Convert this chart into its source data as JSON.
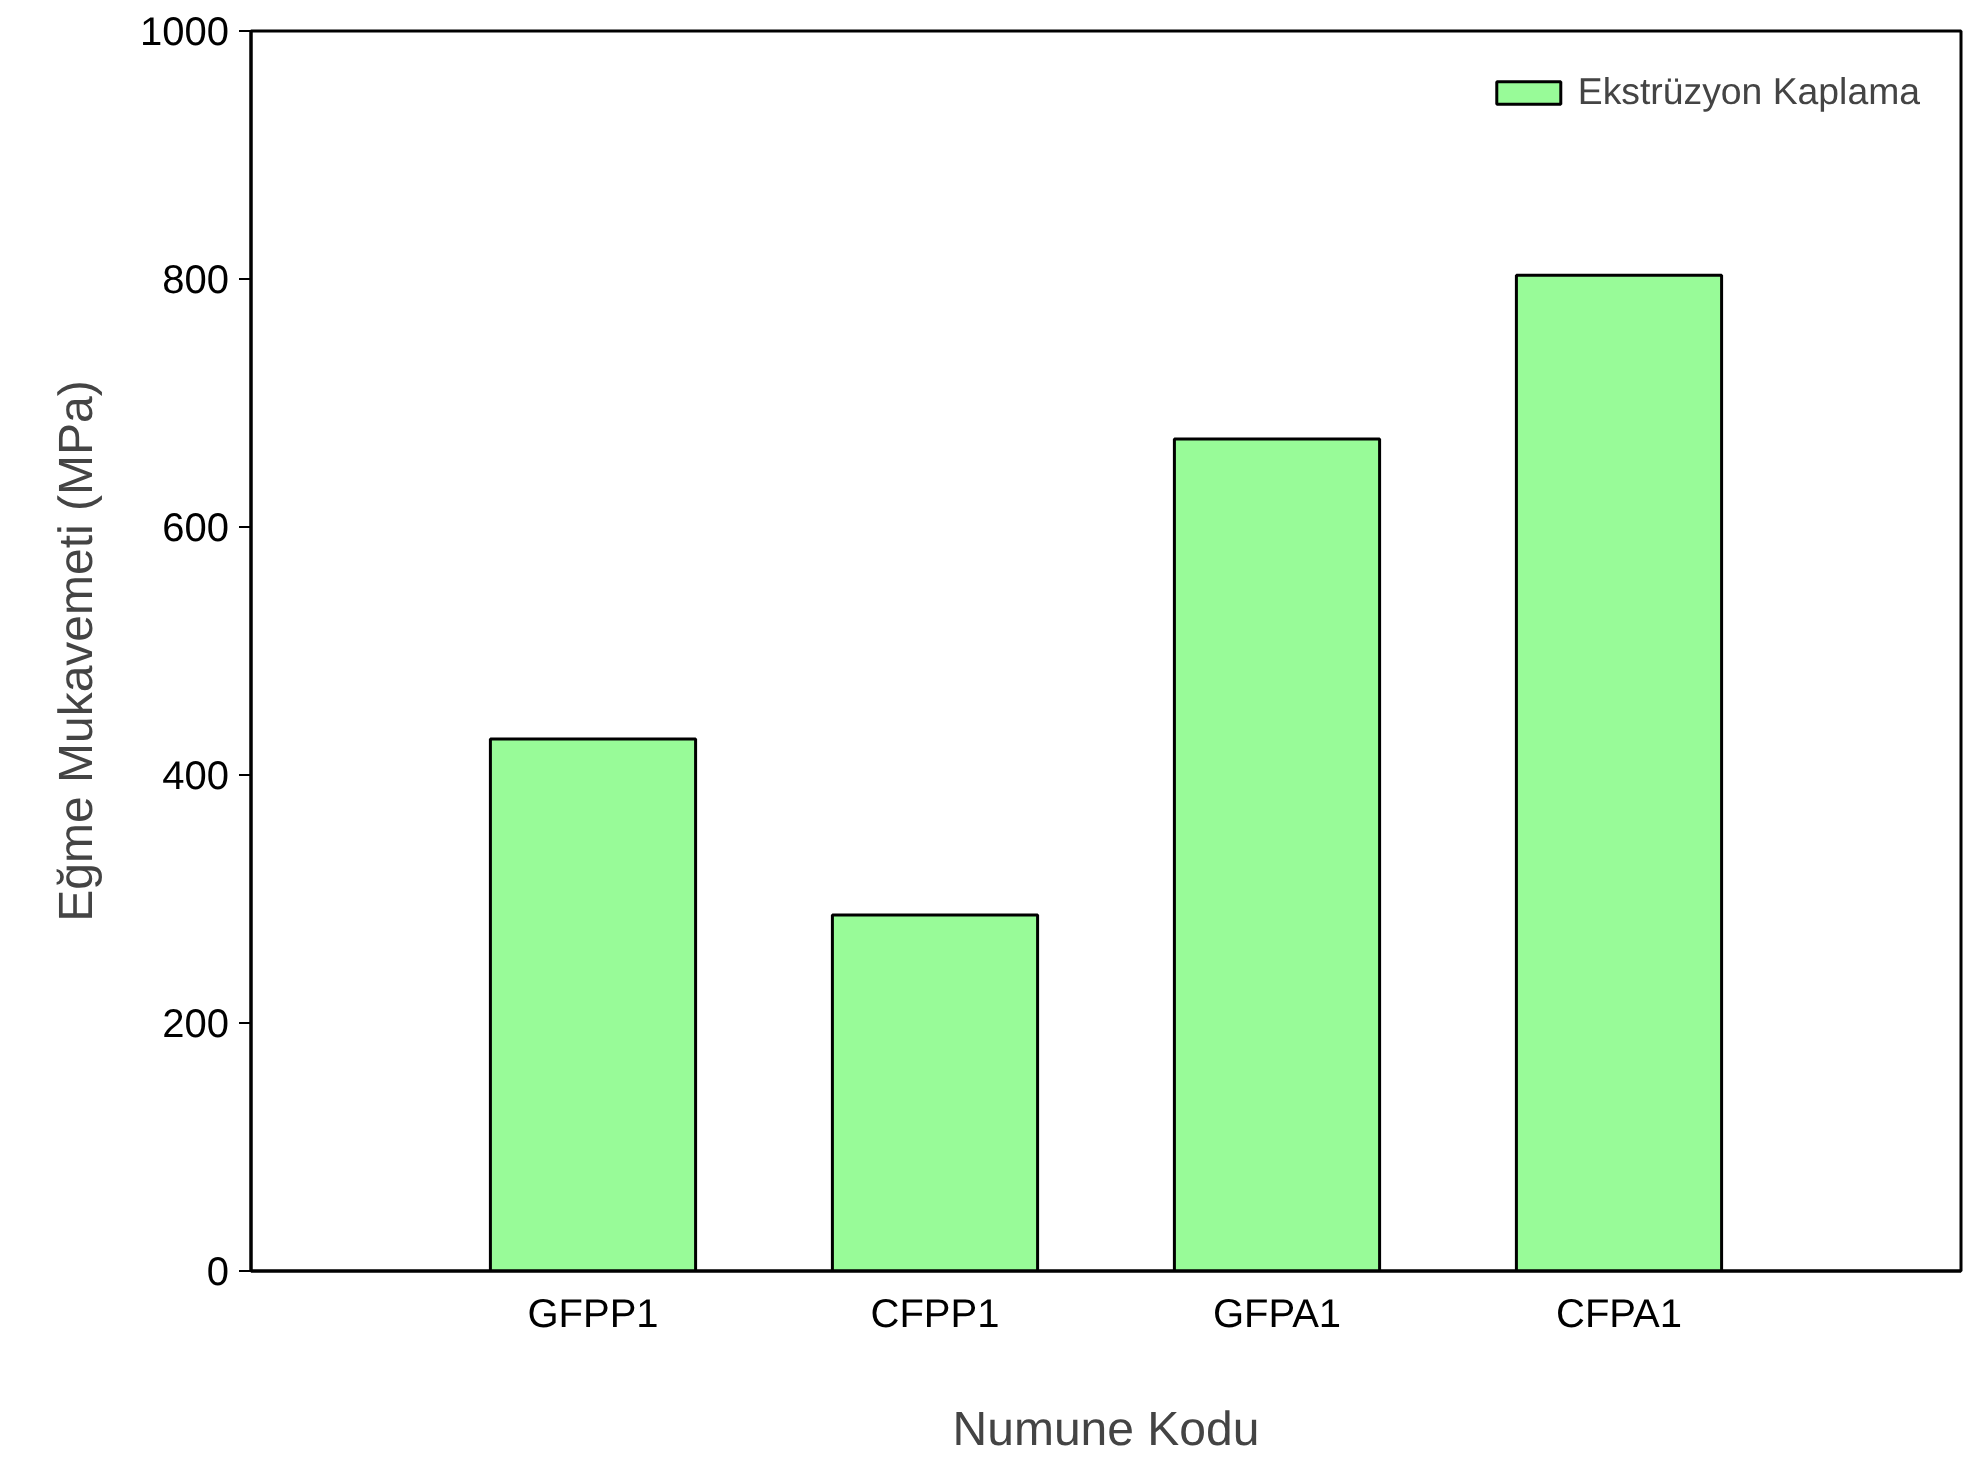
{
  "chart_data": {
    "type": "bar",
    "xlabel": "Numune Kodu",
    "ylabel": "Eğme Mukavemeti (MPa)",
    "categories": [
      "GFPP1",
      "CFPP1",
      "GFPA1",
      "CFPA1"
    ],
    "series": [
      {
        "name": "Ekstrüzyon Kaplama",
        "color": "#98fb98",
        "values": [
          429,
          287,
          671,
          803
        ]
      }
    ],
    "ylim": [
      0,
      1000
    ],
    "yticks": [
      0,
      200,
      400,
      600,
      800,
      1000
    ],
    "grid": false,
    "legend": "top right"
  }
}
